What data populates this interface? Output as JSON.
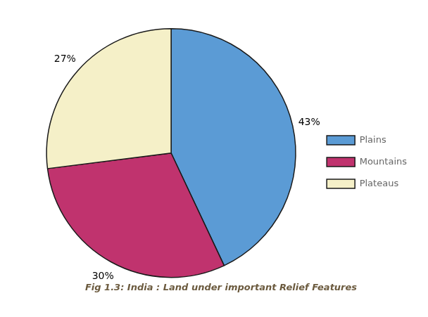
{
  "chart_data": {
    "type": "pie",
    "title": "Fig 1.3: India : Land under important Relief Features",
    "categories": [
      "Plains",
      "Mountains",
      "Plateaus"
    ],
    "values": [
      43,
      30,
      27
    ],
    "value_labels": [
      "43%",
      "30%",
      "27%"
    ],
    "data_labels": true,
    "colors": [
      "#5b9bd5",
      "#c0336e",
      "#f5f0c8"
    ],
    "legend": "right"
  }
}
